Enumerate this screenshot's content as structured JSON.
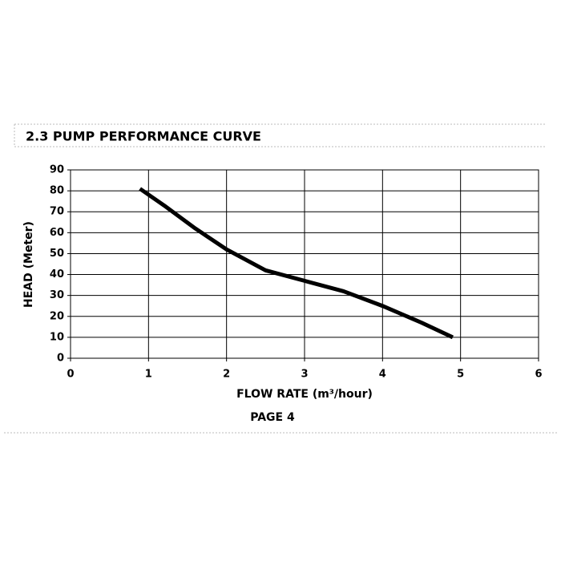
{
  "header": {
    "title": "2.3 PUMP PERFORMANCE CURVE"
  },
  "footer": {
    "page": "PAGE 4"
  },
  "chart_data": {
    "type": "line",
    "x_label": "FLOW RATE (m³/hour)",
    "y_label": "HEAD (Meter)",
    "x": [
      0.89,
      1.2,
      1.6,
      2,
      2.5,
      3,
      3.5,
      4,
      4.5,
      4.9
    ],
    "series": [
      {
        "color": "#000000",
        "values": [
          81,
          73,
          62,
          52,
          42,
          37,
          32,
          25,
          17,
          10
        ]
      }
    ],
    "xlim": [
      0,
      6
    ],
    "xticks": [
      0,
      1,
      2,
      3,
      4,
      5,
      6
    ],
    "ylim": [
      0,
      90
    ],
    "yticks": [
      0,
      10,
      20,
      30,
      40,
      50,
      60,
      70,
      80,
      90
    ],
    "grid": true
  }
}
